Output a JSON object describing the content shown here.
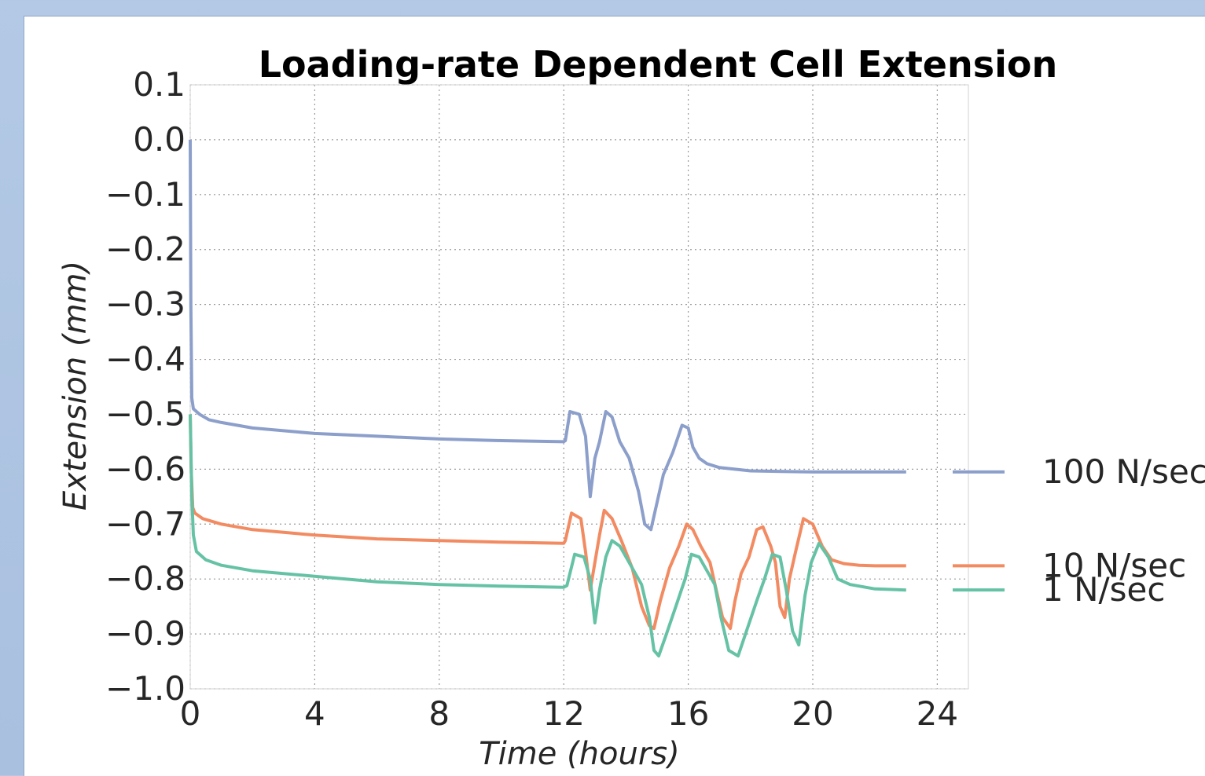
{
  "chart_data": {
    "type": "line",
    "title": "Loading-rate Dependent Cell Extension",
    "xlabel": "Time (hours)",
    "ylabel": "Extension (mm)",
    "xlim": [
      0,
      25
    ],
    "ylim": [
      -1.0,
      0.1
    ],
    "xticks": [
      0,
      4,
      8,
      12,
      16,
      20,
      24
    ],
    "yticks": [
      0.1,
      0.0,
      -0.1,
      -0.2,
      -0.3,
      -0.4,
      -0.5,
      -0.6,
      -0.7,
      -0.8,
      -0.9,
      -1.0
    ],
    "xtick_labels": [
      "0",
      "4",
      "8",
      "12",
      "16",
      "20",
      "24"
    ],
    "ytick_labels": [
      "0.1",
      "0.0",
      "−0.1",
      "−0.2",
      "−0.3",
      "−0.4",
      "−0.5",
      "−0.6",
      "−0.7",
      "−0.8",
      "−0.9",
      "−1.0"
    ],
    "grid": true,
    "legend_position": "right-outside",
    "series": [
      {
        "name": "100 N/sec",
        "color": "#8c9fcb",
        "x": [
          0,
          0.02,
          0.05,
          0.1,
          0.3,
          0.6,
          1,
          2,
          3,
          4,
          6,
          8,
          10,
          12,
          12.05,
          12.2,
          12.5,
          12.7,
          12.85,
          13,
          13.15,
          13.35,
          13.55,
          13.8,
          14.1,
          14.4,
          14.6,
          14.8,
          15,
          15.2,
          15.5,
          15.8,
          16,
          16.15,
          16.35,
          16.6,
          17,
          17.5,
          18,
          19,
          20,
          21,
          22,
          23
        ],
        "y": [
          0.0,
          -0.3,
          -0.47,
          -0.49,
          -0.5,
          -0.51,
          -0.515,
          -0.525,
          -0.53,
          -0.535,
          -0.54,
          -0.545,
          -0.548,
          -0.55,
          -0.548,
          -0.495,
          -0.5,
          -0.54,
          -0.65,
          -0.58,
          -0.55,
          -0.495,
          -0.505,
          -0.55,
          -0.58,
          -0.64,
          -0.7,
          -0.71,
          -0.66,
          -0.61,
          -0.57,
          -0.52,
          -0.525,
          -0.56,
          -0.58,
          -0.59,
          -0.597,
          -0.6,
          -0.603,
          -0.604,
          -0.605,
          -0.605,
          -0.605,
          -0.605
        ]
      },
      {
        "name": "10 N/sec",
        "color": "#f28b62",
        "x": [
          0,
          0.03,
          0.08,
          0.15,
          0.4,
          1,
          2,
          4,
          6,
          8,
          10,
          12,
          12.05,
          12.25,
          12.55,
          12.7,
          12.85,
          13,
          13.15,
          13.3,
          13.55,
          13.85,
          14.2,
          14.5,
          14.75,
          14.9,
          15.1,
          15.4,
          15.7,
          15.95,
          16.15,
          16.4,
          16.7,
          16.9,
          17.1,
          17.35,
          17.5,
          17.7,
          17.95,
          18.2,
          18.4,
          18.65,
          18.8,
          18.95,
          19.1,
          19.25,
          19.45,
          19.7,
          20,
          20.3,
          20.6,
          21,
          21.5,
          22,
          23
        ],
        "y": [
          -0.5,
          -0.6,
          -0.67,
          -0.68,
          -0.69,
          -0.7,
          -0.71,
          -0.72,
          -0.727,
          -0.73,
          -0.733,
          -0.735,
          -0.73,
          -0.68,
          -0.69,
          -0.75,
          -0.82,
          -0.77,
          -0.72,
          -0.675,
          -0.69,
          -0.73,
          -0.78,
          -0.85,
          -0.885,
          -0.89,
          -0.84,
          -0.78,
          -0.74,
          -0.7,
          -0.71,
          -0.74,
          -0.77,
          -0.82,
          -0.87,
          -0.89,
          -0.84,
          -0.79,
          -0.76,
          -0.71,
          -0.705,
          -0.74,
          -0.77,
          -0.85,
          -0.87,
          -0.8,
          -0.75,
          -0.69,
          -0.7,
          -0.74,
          -0.765,
          -0.772,
          -0.775,
          -0.776,
          -0.776
        ]
      },
      {
        "name": "1 N/sec",
        "color": "#66c2a5",
        "x": [
          0,
          0.05,
          0.1,
          0.2,
          0.5,
          1,
          2,
          4,
          6,
          8,
          10,
          12,
          12.1,
          12.35,
          12.65,
          12.85,
          13,
          13.15,
          13.35,
          13.55,
          13.8,
          14.1,
          14.5,
          14.75,
          14.9,
          15.05,
          15.3,
          15.6,
          15.9,
          16.1,
          16.35,
          16.6,
          16.85,
          17.05,
          17.3,
          17.6,
          17.9,
          18.2,
          18.45,
          18.7,
          18.95,
          19.15,
          19.35,
          19.55,
          19.75,
          19.95,
          20.2,
          20.5,
          20.8,
          21.2,
          22,
          23
        ],
        "y": [
          -0.5,
          -0.65,
          -0.72,
          -0.75,
          -0.765,
          -0.775,
          -0.785,
          -0.795,
          -0.805,
          -0.81,
          -0.813,
          -0.815,
          -0.812,
          -0.755,
          -0.76,
          -0.8,
          -0.88,
          -0.82,
          -0.76,
          -0.73,
          -0.74,
          -0.77,
          -0.81,
          -0.87,
          -0.93,
          -0.94,
          -0.9,
          -0.85,
          -0.8,
          -0.755,
          -0.76,
          -0.785,
          -0.81,
          -0.87,
          -0.93,
          -0.94,
          -0.89,
          -0.84,
          -0.8,
          -0.755,
          -0.76,
          -0.82,
          -0.895,
          -0.92,
          -0.83,
          -0.77,
          -0.735,
          -0.76,
          -0.8,
          -0.81,
          -0.818,
          -0.82
        ]
      }
    ]
  }
}
